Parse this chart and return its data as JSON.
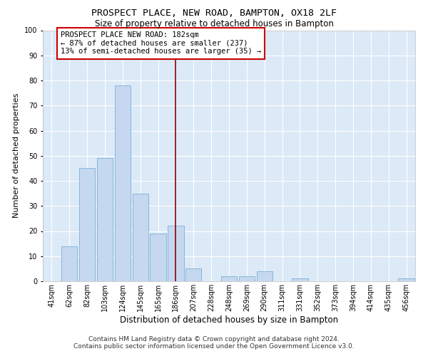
{
  "title1": "PROSPECT PLACE, NEW ROAD, BAMPTON, OX18 2LF",
  "title2": "Size of property relative to detached houses in Bampton",
  "xlabel": "Distribution of detached houses by size in Bampton",
  "ylabel": "Number of detached properties",
  "categories": [
    "41sqm",
    "62sqm",
    "82sqm",
    "103sqm",
    "124sqm",
    "145sqm",
    "165sqm",
    "186sqm",
    "207sqm",
    "228sqm",
    "248sqm",
    "269sqm",
    "290sqm",
    "311sqm",
    "331sqm",
    "352sqm",
    "373sqm",
    "394sqm",
    "414sqm",
    "435sqm",
    "456sqm"
  ],
  "values": [
    0,
    14,
    45,
    49,
    78,
    35,
    19,
    22,
    5,
    0,
    2,
    2,
    4,
    0,
    1,
    0,
    0,
    0,
    0,
    0,
    1
  ],
  "bar_color": "#c5d8f0",
  "bar_edge_color": "#7bafd4",
  "vline_x_index": 7,
  "vline_color": "#8b0000",
  "annotation_line1": "PROSPECT PLACE NEW ROAD: 182sqm",
  "annotation_line2": "← 87% of detached houses are smaller (237)",
  "annotation_line3": "13% of semi-detached houses are larger (35) →",
  "annotation_box_facecolor": "#ffffff",
  "annotation_box_edgecolor": "#cc0000",
  "footnote1": "Contains HM Land Registry data © Crown copyright and database right 2024.",
  "footnote2": "Contains public sector information licensed under the Open Government Licence v3.0.",
  "ylim": [
    0,
    100
  ],
  "background_color": "#dce9f7",
  "title1_fontsize": 9.5,
  "title2_fontsize": 8.5,
  "xlabel_fontsize": 8.5,
  "ylabel_fontsize": 8,
  "tick_fontsize": 7,
  "ann_fontsize": 7.5,
  "footnote_fontsize": 6.5
}
